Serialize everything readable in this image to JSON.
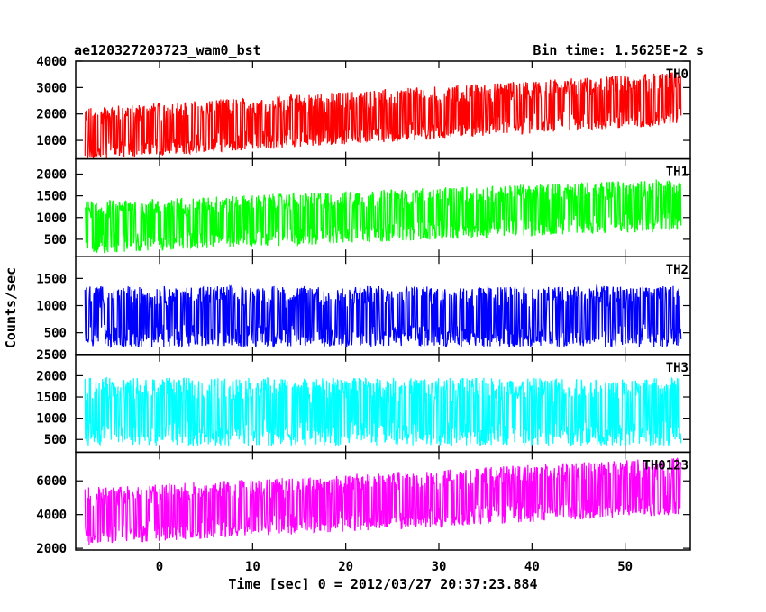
{
  "header": {
    "title": "ae120327203723_wam0_bst",
    "bin_time": "Bin time: 1.5625E-2 s"
  },
  "chart_data": {
    "type": "line",
    "xlabel": "Time [sec] 0 = 2012/03/27 20:37:23.884",
    "ylabel": "Counts/sec",
    "xlim": [
      -9,
      57
    ],
    "x_ticks": [
      0,
      10,
      20,
      30,
      40,
      50
    ],
    "x_tick_labels": [
      "0",
      "10",
      "20",
      "30",
      "40",
      "50"
    ],
    "data_x_range": [
      -8,
      56
    ],
    "panels": [
      {
        "name": "TH0",
        "color": "#ff0000",
        "ylim": [
          300,
          4000
        ],
        "yticks": [
          1000,
          2000,
          3000,
          4000
        ],
        "ytick_labels": [
          "1000",
          "2000",
          "3000",
          "4000"
        ],
        "mean_start": 1250,
        "mean_end": 2600,
        "noise": 1000
      },
      {
        "name": "TH1",
        "color": "#00ff00",
        "ylim": [
          100,
          2350
        ],
        "yticks": [
          500,
          1000,
          1500,
          2000
        ],
        "ytick_labels": [
          "500",
          "1000",
          "1500",
          "2000"
        ],
        "mean_start": 780,
        "mean_end": 1300,
        "noise": 600
      },
      {
        "name": "TH2",
        "color": "#0000ff",
        "ylim": [
          100,
          1900
        ],
        "yticks": [
          500,
          1000,
          1500
        ],
        "ytick_labels": [
          "500",
          "1000",
          "1500"
        ],
        "mean_start": 800,
        "mean_end": 800,
        "noise": 560
      },
      {
        "name": "TH3",
        "color": "#00ffff",
        "ylim": [
          200,
          2500
        ],
        "yticks": [
          500,
          1000,
          1500,
          2000,
          2500
        ],
        "ytick_labels": [
          "500",
          "1000",
          "1500",
          "2000",
          "2500"
        ],
        "mean_start": 1150,
        "mean_end": 1150,
        "noise": 800
      },
      {
        "name": "TH0123",
        "color": "#ff00ff",
        "ylim": [
          1900,
          7700
        ],
        "yticks": [
          2000,
          4000,
          6000
        ],
        "ytick_labels": [
          "2000",
          "4000",
          "6000"
        ],
        "mean_start": 3900,
        "mean_end": 5700,
        "noise": 1700
      }
    ]
  }
}
